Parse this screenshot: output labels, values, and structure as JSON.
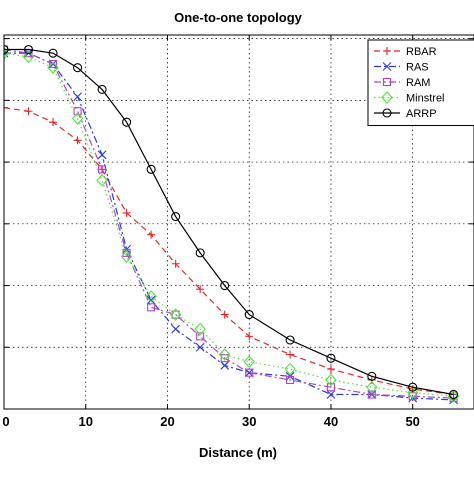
{
  "chart_data": {
    "type": "line",
    "title": "One-to-one topology",
    "xlabel": "Distance (m)",
    "ylabel": "",
    "xlim": [
      0,
      57.5
    ],
    "ylim": [
      0,
      1.03
    ],
    "xticks": [
      0,
      10,
      20,
      30,
      40,
      50
    ],
    "xtick_labels": [
      "0",
      "10",
      "20",
      "30",
      "40",
      "50"
    ],
    "yticks": [
      0,
      0.17,
      0.34,
      0.51,
      0.68,
      0.85,
      1.02
    ],
    "grid": true,
    "legend_position": "top-right",
    "series": [
      {
        "name": "RBAR",
        "color": "#e8262b",
        "line_style": "dashed",
        "marker": "plus",
        "x": [
          0,
          3,
          6,
          9,
          12,
          15,
          18,
          21,
          24,
          27,
          30,
          35,
          40,
          45,
          50,
          55
        ],
        "y": [
          0.83,
          0.82,
          0.79,
          0.74,
          0.66,
          0.54,
          0.48,
          0.4,
          0.33,
          0.26,
          0.2,
          0.15,
          0.11,
          0.08,
          0.055,
          0.04
        ]
      },
      {
        "name": "RAS",
        "color": "#2a3bd8",
        "line_style": "dashdot",
        "marker": "x",
        "x": [
          0,
          3,
          6,
          9,
          12,
          15,
          18,
          21,
          24,
          27,
          30,
          35,
          40,
          45,
          50,
          55
        ],
        "y": [
          0.98,
          0.98,
          0.95,
          0.86,
          0.7,
          0.44,
          0.3,
          0.22,
          0.17,
          0.12,
          0.1,
          0.09,
          0.04,
          0.04,
          0.03,
          0.025
        ]
      },
      {
        "name": "RAM",
        "color": "#b244c7",
        "line_style": "dashdot",
        "marker": "square",
        "x": [
          0,
          3,
          6,
          9,
          12,
          15,
          18,
          21,
          24,
          27,
          30,
          35,
          40,
          45,
          50,
          55
        ],
        "y": [
          0.99,
          0.98,
          0.95,
          0.82,
          0.66,
          0.43,
          0.28,
          0.26,
          0.2,
          0.14,
          0.1,
          0.08,
          0.06,
          0.04,
          0.035,
          0.03
        ]
      },
      {
        "name": "Minstrel",
        "color": "#52e33c",
        "line_style": "dotted",
        "marker": "diamond",
        "x": [
          0,
          3,
          6,
          9,
          12,
          15,
          18,
          21,
          24,
          27,
          30,
          35,
          40,
          45,
          50,
          55
        ],
        "y": [
          0.98,
          0.97,
          0.94,
          0.8,
          0.63,
          0.42,
          0.31,
          0.26,
          0.22,
          0.15,
          0.13,
          0.11,
          0.08,
          0.06,
          0.045,
          0.035
        ]
      },
      {
        "name": "ARRP",
        "color": "#000000",
        "line_style": "solid",
        "marker": "circle",
        "x": [
          0,
          3,
          6,
          9,
          12,
          15,
          18,
          21,
          24,
          27,
          30,
          35,
          40,
          45,
          50,
          55
        ],
        "y": [
          0.99,
          0.99,
          0.98,
          0.94,
          0.88,
          0.79,
          0.66,
          0.53,
          0.43,
          0.34,
          0.26,
          0.19,
          0.14,
          0.09,
          0.06,
          0.04
        ]
      }
    ]
  }
}
